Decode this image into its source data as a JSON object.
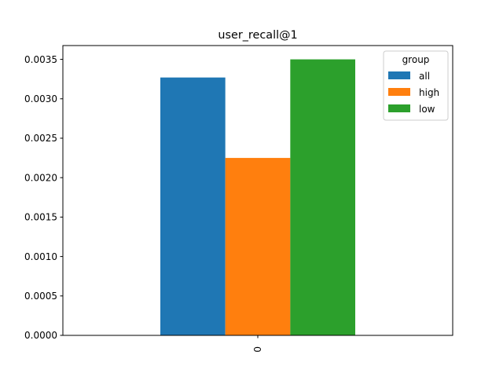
{
  "chart_data": {
    "type": "bar",
    "title": "user_recall@1",
    "xlabel": "",
    "ylabel": "",
    "categories": [
      "0"
    ],
    "series": [
      {
        "name": "all",
        "values": [
          0.00327
        ],
        "color": "#1f77b4"
      },
      {
        "name": "high",
        "values": [
          0.00225
        ],
        "color": "#ff7f0e"
      },
      {
        "name": "low",
        "values": [
          0.0035
        ],
        "color": "#2ca02c"
      }
    ],
    "ylim": [
      0,
      0.003675
    ],
    "yticks": [
      "0.0000",
      "0.0005",
      "0.0010",
      "0.0015",
      "0.0020",
      "0.0025",
      "0.0030",
      "0.0035"
    ],
    "legend": {
      "title": "group",
      "placement": "top-right"
    },
    "grid": false
  }
}
